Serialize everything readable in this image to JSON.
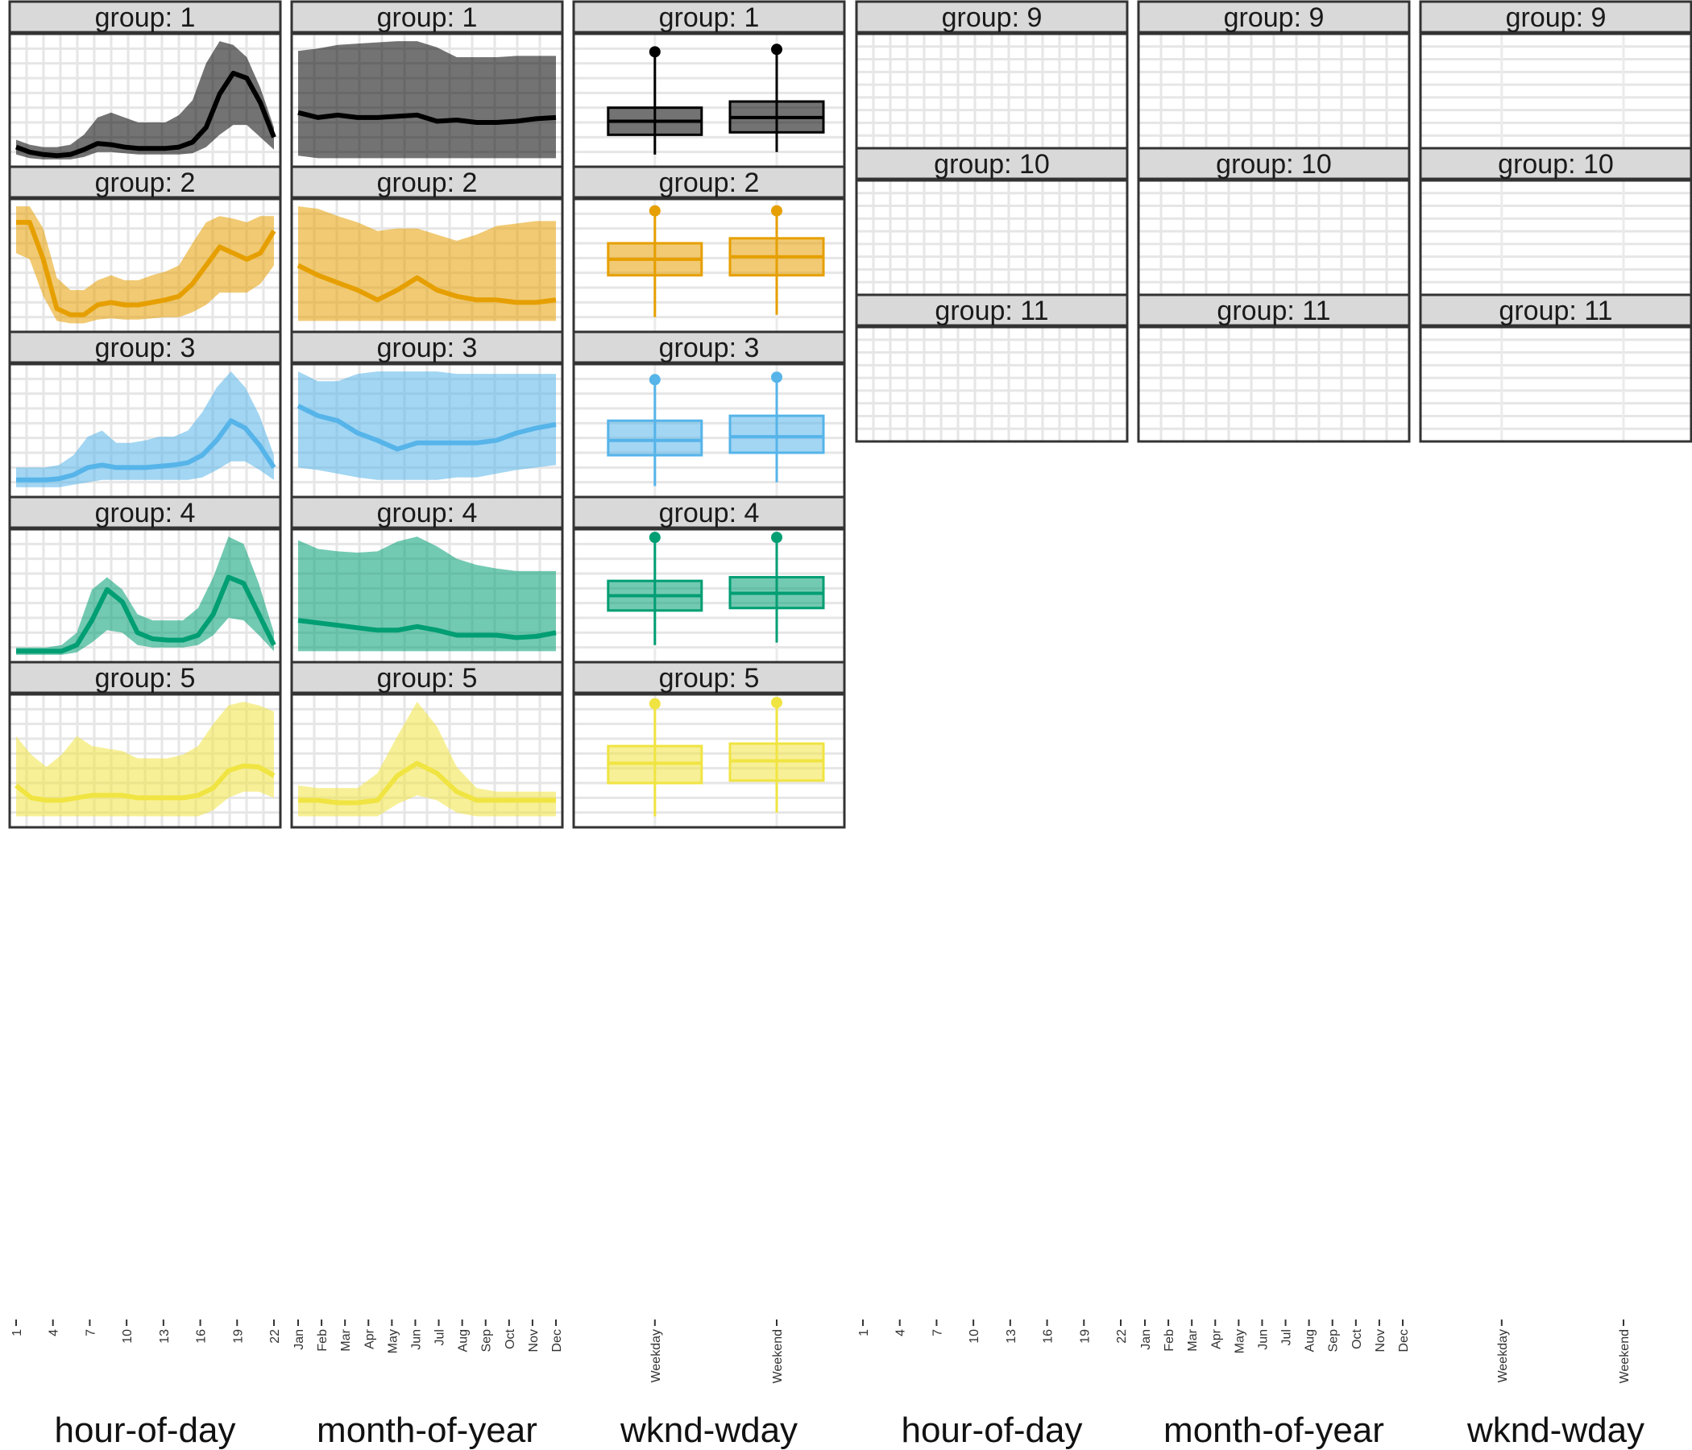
{
  "chart_data": [
    {
      "block": "left",
      "type": "area",
      "groups": [
        {
          "label": "group: 1",
          "color": "#000000",
          "hour": {
            "median": [
              0.12,
              0.08,
              0.06,
              0.05,
              0.06,
              0.1,
              0.15,
              0.14,
              0.12,
              0.11,
              0.11,
              0.11,
              0.12,
              0.16,
              0.28,
              0.55,
              0.72,
              0.68,
              0.48,
              0.2
            ],
            "lower": [
              0.06,
              0.03,
              0.02,
              0.02,
              0.02,
              0.04,
              0.08,
              0.08,
              0.07,
              0.06,
              0.06,
              0.06,
              0.06,
              0.07,
              0.12,
              0.22,
              0.3,
              0.3,
              0.2,
              0.1
            ],
            "upper": [
              0.18,
              0.14,
              0.12,
              0.12,
              0.14,
              0.22,
              0.36,
              0.4,
              0.36,
              0.32,
              0.32,
              0.32,
              0.38,
              0.5,
              0.8,
              0.98,
              0.95,
              0.85,
              0.6,
              0.28
            ]
          },
          "month": {
            "median": [
              0.4,
              0.36,
              0.38,
              0.36,
              0.36,
              0.37,
              0.38,
              0.33,
              0.34,
              0.32,
              0.32,
              0.33,
              0.35,
              0.36
            ],
            "lower": [
              0.05,
              0.03,
              0.03,
              0.03,
              0.03,
              0.03,
              0.03,
              0.03,
              0.03,
              0.03,
              0.03,
              0.03,
              0.03,
              0.03
            ],
            "upper": [
              0.9,
              0.92,
              0.95,
              0.96,
              0.97,
              0.98,
              0.98,
              0.93,
              0.85,
              0.85,
              0.85,
              0.86,
              0.86,
              0.86
            ]
          },
          "box": {
            "weekday": [
              0.06,
              0.22,
              0.33,
              0.44,
              0.88
            ],
            "weekend": [
              0.08,
              0.24,
              0.36,
              0.49,
              0.9
            ]
          }
        },
        {
          "label": "group: 2",
          "color": "#E69F00",
          "hour": {
            "median": [
              0.85,
              0.85,
              0.55,
              0.15,
              0.1,
              0.1,
              0.18,
              0.2,
              0.18,
              0.18,
              0.2,
              0.22,
              0.25,
              0.35,
              0.5,
              0.65,
              0.6,
              0.55,
              0.6,
              0.78
            ],
            "lower": [
              0.6,
              0.55,
              0.25,
              0.05,
              0.03,
              0.03,
              0.06,
              0.07,
              0.06,
              0.06,
              0.07,
              0.08,
              0.08,
              0.12,
              0.18,
              0.28,
              0.28,
              0.28,
              0.35,
              0.5
            ],
            "upper": [
              0.98,
              0.98,
              0.8,
              0.4,
              0.3,
              0.3,
              0.38,
              0.42,
              0.38,
              0.38,
              0.42,
              0.45,
              0.5,
              0.68,
              0.85,
              0.9,
              0.88,
              0.85,
              0.9,
              0.9
            ]
          },
          "month": {
            "median": [
              0.5,
              0.42,
              0.36,
              0.3,
              0.22,
              0.3,
              0.4,
              0.3,
              0.25,
              0.22,
              0.22,
              0.2,
              0.2,
              0.22
            ],
            "lower": [
              0.05,
              0.05,
              0.05,
              0.05,
              0.05,
              0.05,
              0.05,
              0.05,
              0.05,
              0.05,
              0.05,
              0.05,
              0.05,
              0.05
            ],
            "upper": [
              0.98,
              0.96,
              0.9,
              0.85,
              0.78,
              0.8,
              0.8,
              0.75,
              0.7,
              0.75,
              0.82,
              0.84,
              0.86,
              0.86
            ]
          },
          "box": {
            "weekday": [
              0.08,
              0.42,
              0.55,
              0.68,
              0.93
            ],
            "weekend": [
              0.1,
              0.42,
              0.57,
              0.72,
              0.93
            ]
          }
        },
        {
          "label": "group: 3",
          "color": "#56B4E9",
          "hour": {
            "median": [
              0.1,
              0.1,
              0.1,
              0.11,
              0.14,
              0.2,
              0.22,
              0.2,
              0.2,
              0.2,
              0.21,
              0.22,
              0.24,
              0.3,
              0.42,
              0.58,
              0.52,
              0.38,
              0.2
            ],
            "lower": [
              0.04,
              0.04,
              0.04,
              0.04,
              0.06,
              0.08,
              0.1,
              0.1,
              0.1,
              0.1,
              0.1,
              0.1,
              0.1,
              0.12,
              0.18,
              0.25,
              0.25,
              0.18,
              0.1
            ],
            "upper": [
              0.2,
              0.2,
              0.2,
              0.22,
              0.3,
              0.45,
              0.5,
              0.4,
              0.4,
              0.42,
              0.45,
              0.45,
              0.5,
              0.65,
              0.85,
              0.98,
              0.85,
              0.62,
              0.3
            ]
          },
          "month": {
            "median": [
              0.7,
              0.62,
              0.58,
              0.48,
              0.42,
              0.35,
              0.4,
              0.4,
              0.4,
              0.4,
              0.42,
              0.48,
              0.52,
              0.55
            ],
            "lower": [
              0.2,
              0.18,
              0.15,
              0.12,
              0.1,
              0.1,
              0.1,
              0.1,
              0.12,
              0.12,
              0.15,
              0.18,
              0.2,
              0.22
            ],
            "upper": [
              0.98,
              0.9,
              0.9,
              0.96,
              0.98,
              0.98,
              0.98,
              0.98,
              0.96,
              0.96,
              0.96,
              0.96,
              0.96,
              0.96
            ]
          },
          "box": {
            "weekday": [
              0.05,
              0.3,
              0.42,
              0.58,
              0.9
            ],
            "weekend": [
              0.08,
              0.32,
              0.45,
              0.62,
              0.92
            ]
          }
        },
        {
          "label": "group: 4",
          "color": "#009E73",
          "hour": {
            "median": [
              0.05,
              0.05,
              0.05,
              0.05,
              0.1,
              0.3,
              0.55,
              0.45,
              0.2,
              0.15,
              0.14,
              0.14,
              0.18,
              0.35,
              0.65,
              0.6,
              0.35,
              0.1
            ],
            "lower": [
              0.02,
              0.02,
              0.02,
              0.02,
              0.04,
              0.12,
              0.22,
              0.2,
              0.1,
              0.08,
              0.08,
              0.08,
              0.1,
              0.18,
              0.32,
              0.3,
              0.18,
              0.05
            ],
            "upper": [
              0.08,
              0.08,
              0.08,
              0.1,
              0.2,
              0.55,
              0.65,
              0.55,
              0.35,
              0.3,
              0.3,
              0.3,
              0.4,
              0.65,
              0.98,
              0.92,
              0.6,
              0.2
            ]
          },
          "month": {
            "median": [
              0.3,
              0.28,
              0.26,
              0.24,
              0.22,
              0.22,
              0.25,
              0.22,
              0.18,
              0.18,
              0.18,
              0.16,
              0.17,
              0.2
            ],
            "lower": [
              0.05,
              0.05,
              0.05,
              0.05,
              0.05,
              0.05,
              0.05,
              0.05,
              0.05,
              0.05,
              0.05,
              0.05,
              0.05,
              0.05
            ],
            "upper": [
              0.95,
              0.88,
              0.86,
              0.85,
              0.86,
              0.94,
              0.98,
              0.9,
              0.8,
              0.75,
              0.72,
              0.7,
              0.7,
              0.7
            ]
          },
          "box": {
            "weekday": [
              0.1,
              0.38,
              0.5,
              0.62,
              0.96
            ],
            "weekend": [
              0.12,
              0.4,
              0.52,
              0.65,
              0.96
            ]
          }
        },
        {
          "label": "group: 5",
          "color": "#F0E442",
          "hour": {
            "median": [
              0.3,
              0.2,
              0.18,
              0.18,
              0.2,
              0.22,
              0.22,
              0.22,
              0.2,
              0.2,
              0.2,
              0.2,
              0.22,
              0.28,
              0.42,
              0.46,
              0.45,
              0.38
            ],
            "lower": [
              0.05,
              0.05,
              0.05,
              0.05,
              0.05,
              0.05,
              0.05,
              0.05,
              0.05,
              0.05,
              0.05,
              0.05,
              0.05,
              0.1,
              0.2,
              0.25,
              0.25,
              0.2
            ],
            "upper": [
              0.7,
              0.55,
              0.45,
              0.55,
              0.7,
              0.62,
              0.6,
              0.58,
              0.52,
              0.52,
              0.52,
              0.55,
              0.62,
              0.8,
              0.95,
              0.98,
              0.95,
              0.9
            ]
          },
          "month": {
            "median": [
              0.18,
              0.18,
              0.16,
              0.16,
              0.18,
              0.38,
              0.48,
              0.4,
              0.25,
              0.18,
              0.18,
              0.18,
              0.18,
              0.18
            ],
            "lower": [
              0.05,
              0.05,
              0.05,
              0.05,
              0.05,
              0.15,
              0.22,
              0.18,
              0.08,
              0.05,
              0.05,
              0.05,
              0.05,
              0.05
            ],
            "upper": [
              0.3,
              0.28,
              0.28,
              0.28,
              0.4,
              0.7,
              0.98,
              0.78,
              0.45,
              0.28,
              0.25,
              0.25,
              0.25,
              0.25
            ]
          },
          "box": {
            "weekday": [
              0.05,
              0.32,
              0.48,
              0.62,
              0.95
            ],
            "weekend": [
              0.08,
              0.34,
              0.5,
              0.64,
              0.96
            ]
          }
        }
      ]
    },
    {
      "block": "right",
      "type": "area",
      "groups": [
        {
          "label": "group: 9",
          "color": "#2166AC"
        },
        {
          "label": "group: 10",
          "color": "#A6C3EA"
        },
        {
          "label": "group: 11",
          "color": "#FF6B1A"
        }
      ]
    }
  ],
  "axis": {
    "hour_ticks": [
      "1",
      "4",
      "7",
      "10",
      "13",
      "16",
      "19",
      "22"
    ],
    "month_ticks": [
      "Jan",
      "Feb",
      "Mar",
      "Apr",
      "May",
      "Jun",
      "Jul",
      "Aug",
      "Sep",
      "Oct",
      "Nov",
      "Dec"
    ],
    "wk_ticks": [
      "Weekday",
      "Weekend"
    ],
    "col_titles": [
      "hour-of-day",
      "month-of-year",
      "wknd-wday",
      "hour-of-day",
      "month-of-year",
      "wknd-wday"
    ]
  }
}
